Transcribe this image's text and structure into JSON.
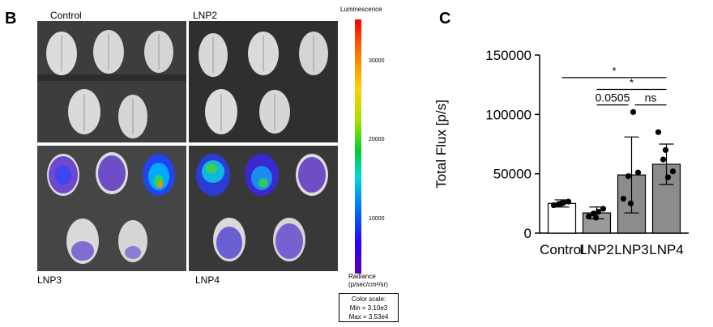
{
  "panel_b": {
    "letter": "B",
    "quadrants": [
      {
        "id": "control",
        "label": "Control",
        "signal": 0
      },
      {
        "id": "lnp2",
        "label": "LNP2",
        "signal": 0
      },
      {
        "id": "lnp3",
        "label": "LNP3",
        "signal": 1
      },
      {
        "id": "lnp4",
        "label": "LNP4",
        "signal": 1
      }
    ],
    "colorbar": {
      "title": "Luminescence",
      "ticks": [
        "30000",
        "20000",
        "10000"
      ],
      "tick_values": [
        30000,
        20000,
        10000
      ],
      "min_value": 3100,
      "max_value": 35300,
      "radiance_label_1": "Radiance",
      "radiance_label_2": "(p/sec/cm²/sr)",
      "color_scale_title": "Color scale:",
      "color_scale_min": "Min = 3.10e3",
      "color_scale_max": "Max = 3.53e4"
    }
  },
  "panel_c": {
    "letter": "C"
  },
  "chart_data": {
    "type": "bar",
    "ylabel": "Total Flux [p/s]",
    "ylim": [
      0,
      150000
    ],
    "yticks": [
      0,
      50000,
      100000,
      150000
    ],
    "ytick_labels": [
      "0",
      "50000",
      "100000",
      "150000"
    ],
    "categories": [
      "Control",
      "LNP2",
      "LNP3",
      "LNP4"
    ],
    "values": [
      25000,
      17000,
      49000,
      58000
    ],
    "error": [
      3000,
      5000,
      32000,
      17000
    ],
    "bar_colors": [
      "#ffffff",
      "#9a9a9a",
      "#8c8c8c",
      "#8c8c8c"
    ],
    "points": [
      [
        23500,
        24500,
        25500,
        26500,
        25000
      ],
      [
        14000,
        16500,
        18000,
        20500,
        13000
      ],
      [
        29000,
        48000,
        102000,
        51000,
        25000
      ],
      [
        85000,
        62000,
        47000,
        52000,
        70000
      ]
    ],
    "significance": [
      {
        "from": 0,
        "to": 3,
        "label": "*",
        "y": 131000
      },
      {
        "from": 1,
        "to": 3,
        "label": "*",
        "y": 121000
      },
      {
        "from": 1,
        "to": 2,
        "label": "0.0505",
        "y": 108000
      },
      {
        "from": 2,
        "to": 3,
        "label": "ns",
        "y": 108000
      }
    ]
  }
}
